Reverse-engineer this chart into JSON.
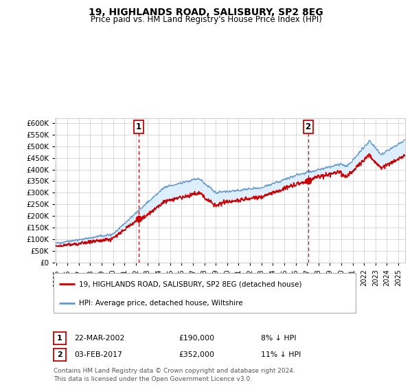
{
  "title": "19, HIGHLANDS ROAD, SALISBURY, SP2 8EG",
  "subtitle": "Price paid vs. HM Land Registry's House Price Index (HPI)",
  "ylim": [
    0,
    620000
  ],
  "xlim_start": 1994.9,
  "xlim_end": 2025.6,
  "x_ticks": [
    1995,
    1996,
    1997,
    1998,
    1999,
    2000,
    2001,
    2002,
    2003,
    2004,
    2005,
    2006,
    2007,
    2008,
    2009,
    2010,
    2011,
    2012,
    2013,
    2014,
    2015,
    2016,
    2017,
    2018,
    2019,
    2020,
    2021,
    2022,
    2023,
    2024,
    2025
  ],
  "sale1_x": 2002.22,
  "sale1_y": 190000,
  "sale1_label": "1",
  "sale1_date": "22-MAR-2002",
  "sale1_price": "£190,000",
  "sale1_hpi": "8% ↓ HPI",
  "sale2_x": 2017.085,
  "sale2_y": 352000,
  "sale2_label": "2",
  "sale2_date": "03-FEB-2017",
  "sale2_price": "£352,000",
  "sale2_hpi": "11% ↓ HPI",
  "legend_label_red": "19, HIGHLANDS ROAD, SALISBURY, SP2 8EG (detached house)",
  "legend_label_blue": "HPI: Average price, detached house, Wiltshire",
  "footer1": "Contains HM Land Registry data © Crown copyright and database right 2024.",
  "footer2": "This data is licensed under the Open Government Licence v3.0.",
  "red_color": "#cc0000",
  "blue_color": "#6699cc",
  "fill_color": "#ddeeff",
  "vline_color": "#cc0000",
  "grid_color": "#cccccc",
  "bg_color": "#ffffff"
}
